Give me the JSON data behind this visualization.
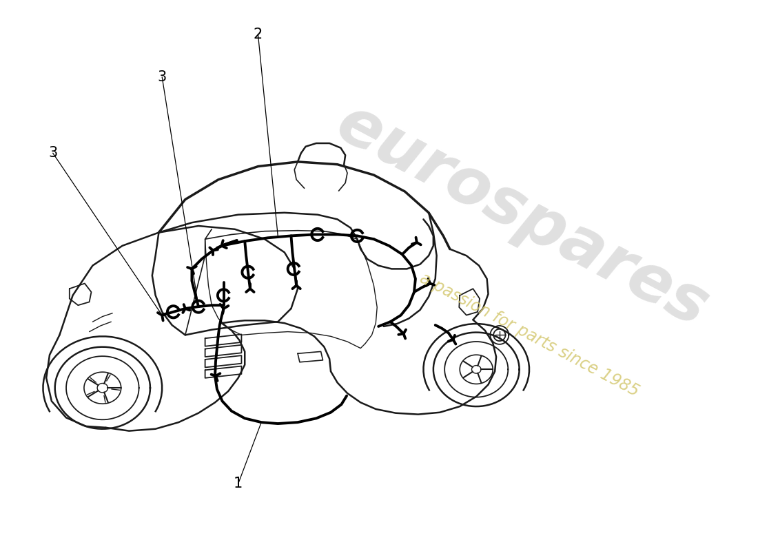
{
  "background_color": "#ffffff",
  "car_line_color": "#1a1a1a",
  "wiring_color": "#000000",
  "watermark_text1": "eurospares",
  "watermark_text2": "a passion for parts since 1985",
  "watermark_color1": "#cccccc",
  "watermark_color2": "#d4c870",
  "label_color": "#000000",
  "label_fontsize": 15,
  "fig_width": 11.0,
  "fig_height": 8.0,
  "dpi": 100
}
